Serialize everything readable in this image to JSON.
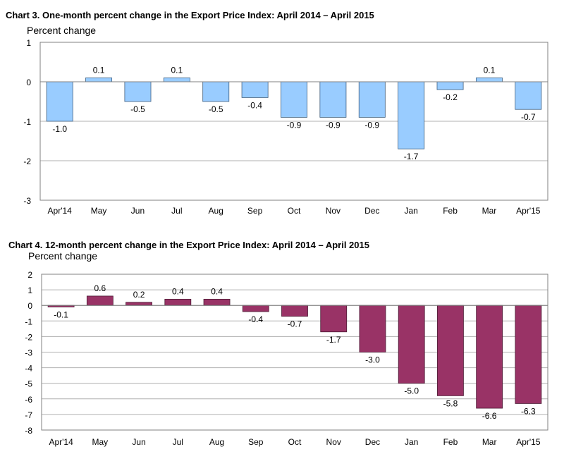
{
  "chart_data": [
    {
      "type": "bar",
      "title": "Chart 3. One-month percent change in the Export Price Index: April 2014 – April 2015",
      "ylabel": "Percent change",
      "xlabel": "",
      "categories": [
        "Apr'14",
        "May",
        "Jun",
        "Jul",
        "Aug",
        "Sep",
        "Oct",
        "Nov",
        "Dec",
        "Jan",
        "Feb",
        "Mar",
        "Apr'15"
      ],
      "values": [
        -1.0,
        0.1,
        -0.5,
        0.1,
        -0.5,
        -0.4,
        -0.9,
        -0.9,
        -0.9,
        -1.7,
        -0.2,
        0.1,
        -0.7
      ],
      "data_labels": [
        "-1.0",
        "0.1",
        "-0.5",
        "0.1",
        "-0.5",
        "-0.4",
        "-0.9",
        "-0.9",
        "-0.9",
        "-1.7",
        "-0.2",
        "0.1",
        "-0.7"
      ],
      "ylim": [
        -3,
        1
      ],
      "yticks": [
        "1",
        "0",
        "-1",
        "-2",
        "-3"
      ],
      "grid": true,
      "bar_color": "#99CCFF",
      "bar_edge_color": "#3F5F7F"
    },
    {
      "type": "bar",
      "title": "Chart 4. 12-month percent change in the Export Price Index: April 2014 – April 2015",
      "ylabel": "Percent change",
      "xlabel": "",
      "categories": [
        "Apr'14",
        "May",
        "Jun",
        "Jul",
        "Aug",
        "Sep",
        "Oct",
        "Nov",
        "Dec",
        "Jan",
        "Feb",
        "Mar",
        "Apr'15"
      ],
      "values": [
        -0.1,
        0.6,
        0.2,
        0.4,
        0.4,
        -0.4,
        -0.7,
        -1.7,
        -3.0,
        -5.0,
        -5.8,
        -6.6,
        -6.3
      ],
      "data_labels": [
        "-0.1",
        "0.6",
        "0.2",
        "0.4",
        "0.4",
        "-0.4",
        "-0.7",
        "-1.7",
        "-3.0",
        "-5.0",
        "-5.8",
        "-6.6",
        "-6.3"
      ],
      "ylim": [
        -8,
        2
      ],
      "yticks": [
        "2",
        "1",
        "0",
        "-1",
        "-2",
        "-3",
        "-4",
        "-5",
        "-6",
        "-7",
        "-8"
      ],
      "grid": true,
      "bar_color": "#993366",
      "bar_edge_color": "#4A1A33"
    }
  ]
}
